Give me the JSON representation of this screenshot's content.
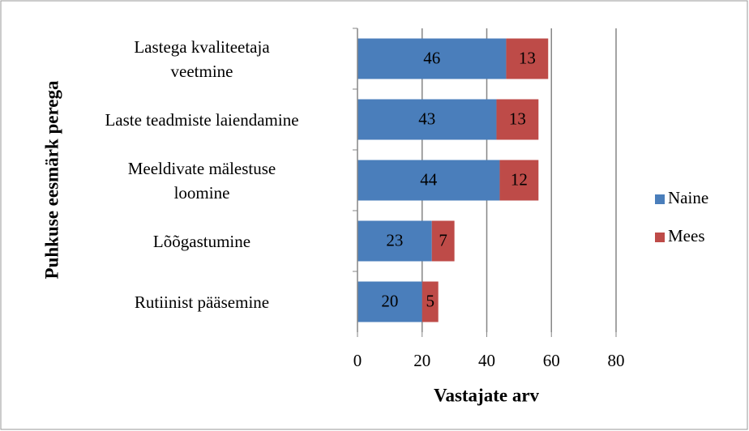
{
  "chart_data": {
    "type": "bar",
    "orientation": "horizontal",
    "stacked": true,
    "xlabel": "Vastajate arv",
    "ylabel": "Puhkuse eesmärk perega",
    "categories": [
      "Lastega kvaliteetaja\nveetmine",
      "Laste teadmiste laiendamine",
      "Meeldivate mälestuse\nloomine",
      "Lõõgastumine",
      "Rutiinist pääsemine"
    ],
    "series": [
      {
        "name": "Naine",
        "color": "#4a7ebb",
        "values": [
          46,
          43,
          44,
          23,
          20
        ]
      },
      {
        "name": "Mees",
        "color": "#be4b48",
        "values": [
          13,
          13,
          12,
          7,
          5
        ]
      }
    ],
    "xlim": [
      0,
      80
    ],
    "xticks": [
      0,
      20,
      40,
      60,
      80
    ],
    "grid": true,
    "legend": "right"
  }
}
